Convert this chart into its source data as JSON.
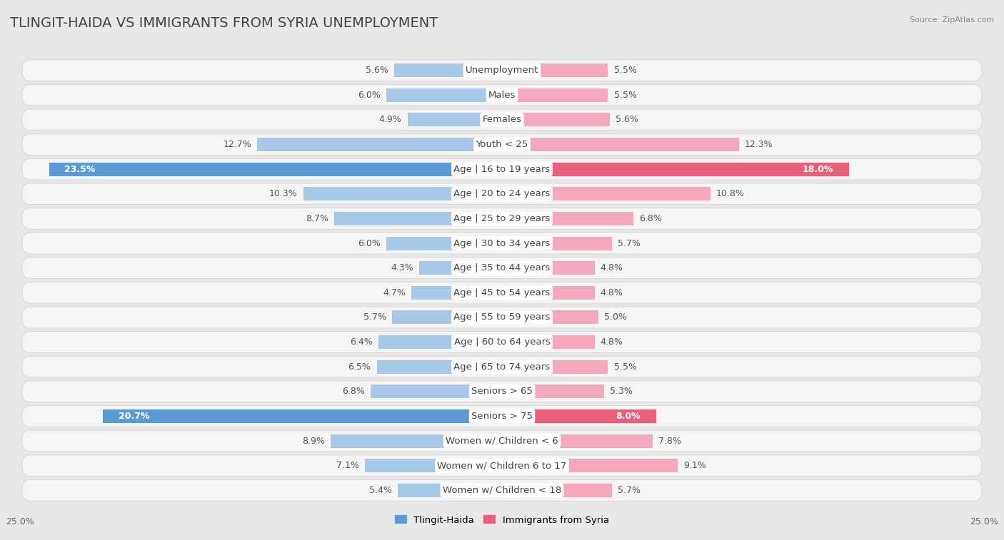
{
  "title": "TLINGIT-HAIDA VS IMMIGRANTS FROM SYRIA UNEMPLOYMENT",
  "source": "Source: ZipAtlas.com",
  "categories": [
    "Unemployment",
    "Males",
    "Females",
    "Youth < 25",
    "Age | 16 to 19 years",
    "Age | 20 to 24 years",
    "Age | 25 to 29 years",
    "Age | 30 to 34 years",
    "Age | 35 to 44 years",
    "Age | 45 to 54 years",
    "Age | 55 to 59 years",
    "Age | 60 to 64 years",
    "Age | 65 to 74 years",
    "Seniors > 65",
    "Seniors > 75",
    "Women w/ Children < 6",
    "Women w/ Children 6 to 17",
    "Women w/ Children < 18"
  ],
  "left_values": [
    5.6,
    6.0,
    4.9,
    12.7,
    23.5,
    10.3,
    8.7,
    6.0,
    4.3,
    4.7,
    5.7,
    6.4,
    6.5,
    6.8,
    20.7,
    8.9,
    7.1,
    5.4
  ],
  "right_values": [
    5.5,
    5.5,
    5.6,
    12.3,
    18.0,
    10.8,
    6.8,
    5.7,
    4.8,
    4.8,
    5.0,
    4.8,
    5.5,
    5.3,
    8.0,
    7.8,
    9.1,
    5.7
  ],
  "left_color": "#a8c8e8",
  "right_color": "#f4a8bb",
  "left_label": "Tlingit-Haida",
  "right_label": "Immigrants from Syria",
  "highlight_left_color": "#5b9bd5",
  "highlight_right_color": "#e8607a",
  "highlight_rows": [
    4,
    14
  ],
  "x_max": 25.0,
  "background_color": "#e8e8e8",
  "row_bg_color": "#f5f5f5",
  "font_size_title": 14,
  "font_size_labels": 9.5,
  "font_size_values": 9,
  "font_size_axis": 9
}
